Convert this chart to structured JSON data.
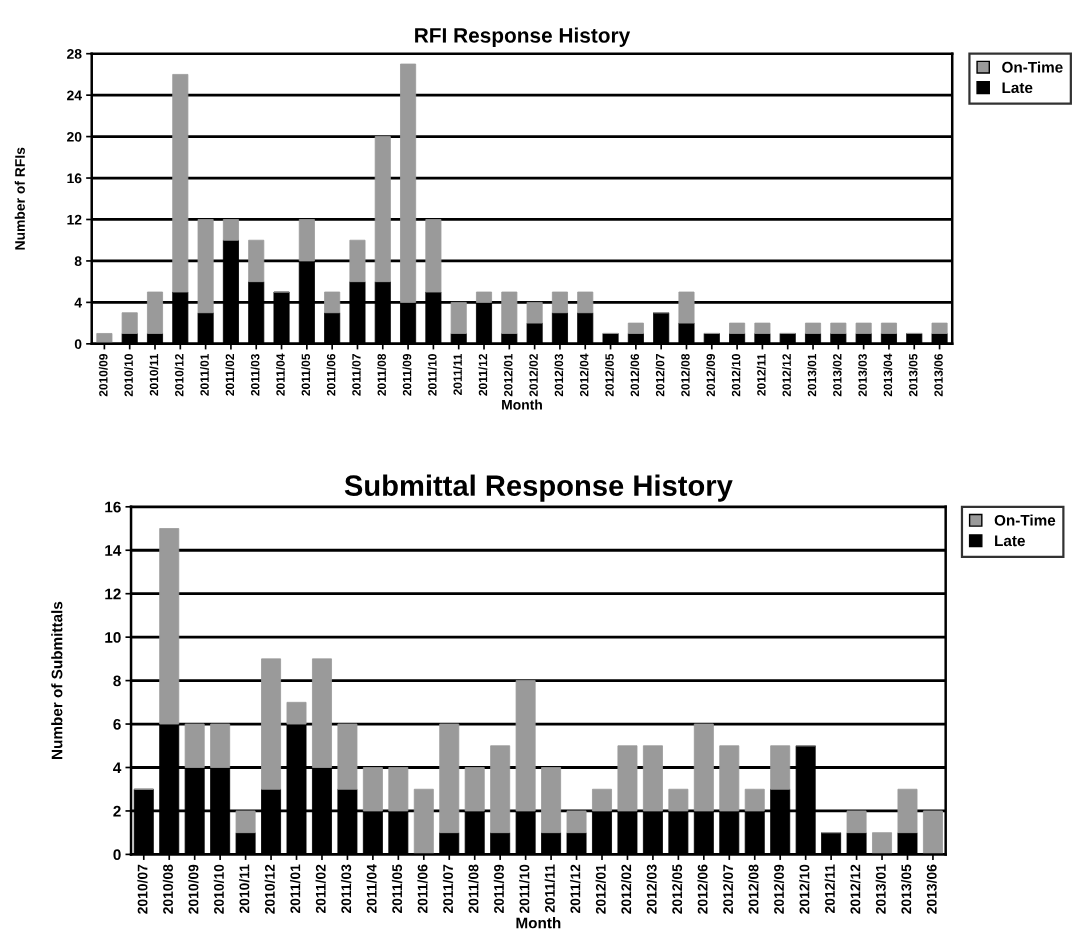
{
  "chart_data": [
    {
      "type": "bar",
      "title": "RFI Response History",
      "xlabel": "Month",
      "ylabel": "Number of RFIs",
      "stacked": true,
      "categories": [
        "2010/09",
        "2010/10",
        "2010/11",
        "2010/12",
        "2011/01",
        "2011/02",
        "2011/03",
        "2011/04",
        "2011/05",
        "2011/06",
        "2011/07",
        "2011/08",
        "2011/09",
        "2011/10",
        "2011/11",
        "2011/12",
        "2012/01",
        "2012/02",
        "2012/03",
        "2012/04",
        "2012/05",
        "2012/06",
        "2012/07",
        "2012/08",
        "2012/09",
        "2012/10",
        "2012/11",
        "2012/12",
        "2013/01",
        "2013/02",
        "2013/03",
        "2013/04",
        "2013/05",
        "2013/06"
      ],
      "series": [
        {
          "name": "Late",
          "color": "#000000",
          "values": [
            0,
            1,
            1,
            5,
            3,
            10,
            6,
            5,
            8,
            3,
            6,
            6,
            4,
            5,
            1,
            4,
            1,
            2,
            3,
            3,
            1,
            1,
            3,
            2,
            1,
            1,
            1,
            1,
            1,
            1,
            1,
            1,
            1,
            1
          ]
        },
        {
          "name": "On-Time",
          "color": "#9a9a9a",
          "values": [
            1,
            2,
            4,
            21,
            9,
            2,
            4,
            0,
            4,
            2,
            4,
            14,
            23,
            7,
            3,
            1,
            4,
            2,
            2,
            2,
            0,
            1,
            0,
            3,
            0,
            1,
            1,
            0,
            1,
            1,
            1,
            1,
            0,
            1
          ]
        }
      ],
      "ylim": [
        0,
        28
      ],
      "yticks": [
        0,
        4,
        8,
        12,
        16,
        20,
        24,
        28
      ],
      "grid": "y",
      "legend": "top right"
    },
    {
      "type": "bar",
      "title": "Submittal Response History",
      "xlabel": "Month",
      "ylabel": "Number of Submittals",
      "stacked": true,
      "categories": [
        "2010/07",
        "2010/08",
        "2010/09",
        "2010/10",
        "2010/11",
        "2010/12",
        "2011/01",
        "2011/02",
        "2011/03",
        "2011/04",
        "2011/05",
        "2011/06",
        "2011/07",
        "2011/08",
        "2011/09",
        "2011/10",
        "2011/11",
        "2011/12",
        "2012/01",
        "2012/02",
        "2012/03",
        "2012/05",
        "2012/06",
        "2012/07",
        "2012/08",
        "2012/09",
        "2012/10",
        "2012/11",
        "2012/12",
        "2013/01",
        "2013/05",
        "2013/06"
      ],
      "series": [
        {
          "name": "Late",
          "color": "#000000",
          "values": [
            3,
            6,
            4,
            4,
            1,
            3,
            6,
            4,
            3,
            2,
            2,
            0,
            1,
            2,
            1,
            2,
            1,
            1,
            2,
            2,
            2,
            2,
            2,
            2,
            2,
            3,
            5,
            1,
            1,
            0,
            1,
            0
          ]
        },
        {
          "name": "On-Time",
          "color": "#9a9a9a",
          "values": [
            0,
            9,
            2,
            2,
            1,
            6,
            1,
            5,
            3,
            2,
            2,
            3,
            5,
            2,
            4,
            6,
            3,
            1,
            1,
            3,
            3,
            1,
            4,
            3,
            1,
            2,
            0,
            0,
            1,
            1,
            2,
            2
          ]
        }
      ],
      "ylim": [
        0,
        16
      ],
      "yticks": [
        0,
        2,
        4,
        6,
        8,
        10,
        12,
        14,
        16
      ],
      "grid": "y",
      "legend": "top right"
    }
  ]
}
